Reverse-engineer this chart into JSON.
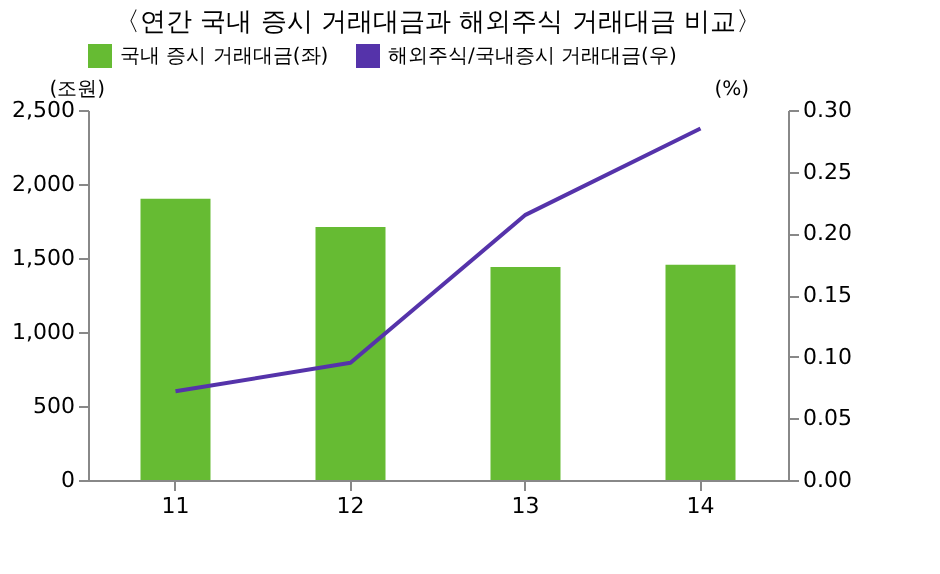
{
  "chart_data": {
    "type": "bar",
    "title": "〈연간 국내 증시 거래대금과 해외주식 거래대금 비교〉",
    "categories": [
      "11",
      "12",
      "13",
      "14"
    ],
    "ylabel": "(조원)",
    "y2label": "(%)",
    "series": [
      {
        "name": "국내 증시 거래대금(좌)",
        "color": "#66bb33",
        "values": [
          1900,
          1710,
          1440,
          1455
        ]
      },
      {
        "name": "해외주식/국내증시 거래대금(우)",
        "type": "line",
        "axis": "y2",
        "color": "#5533aa",
        "values": [
          0.072,
          0.095,
          0.215,
          0.285
        ]
      }
    ],
    "ylim": [
      0,
      2500
    ],
    "yticks": [
      0,
      {
        "value": 500,
        "label": "500"
      },
      {
        "value": 1000,
        "label": "1,000"
      },
      {
        "value": 1500,
        "label": "1,500"
      },
      {
        "value": 2000,
        "label": "2,000"
      },
      {
        "value": 2500,
        "label": "2,500"
      }
    ],
    "y2lim": [
      0,
      0.3
    ],
    "y2ticks": [
      {
        "value": 0,
        "label": "0.00"
      },
      {
        "value": 0.05,
        "label": "0.05"
      },
      {
        "value": 0.1,
        "label": "0.10"
      },
      {
        "value": 0.15,
        "label": "0.15"
      },
      {
        "value": 0.2,
        "label": "0.20"
      },
      {
        "value": 0.25,
        "label": "0.25"
      },
      {
        "value": 0.3,
        "label": "0.30"
      }
    ],
    "legend": "top",
    "grid": false,
    "marker": "none"
  }
}
